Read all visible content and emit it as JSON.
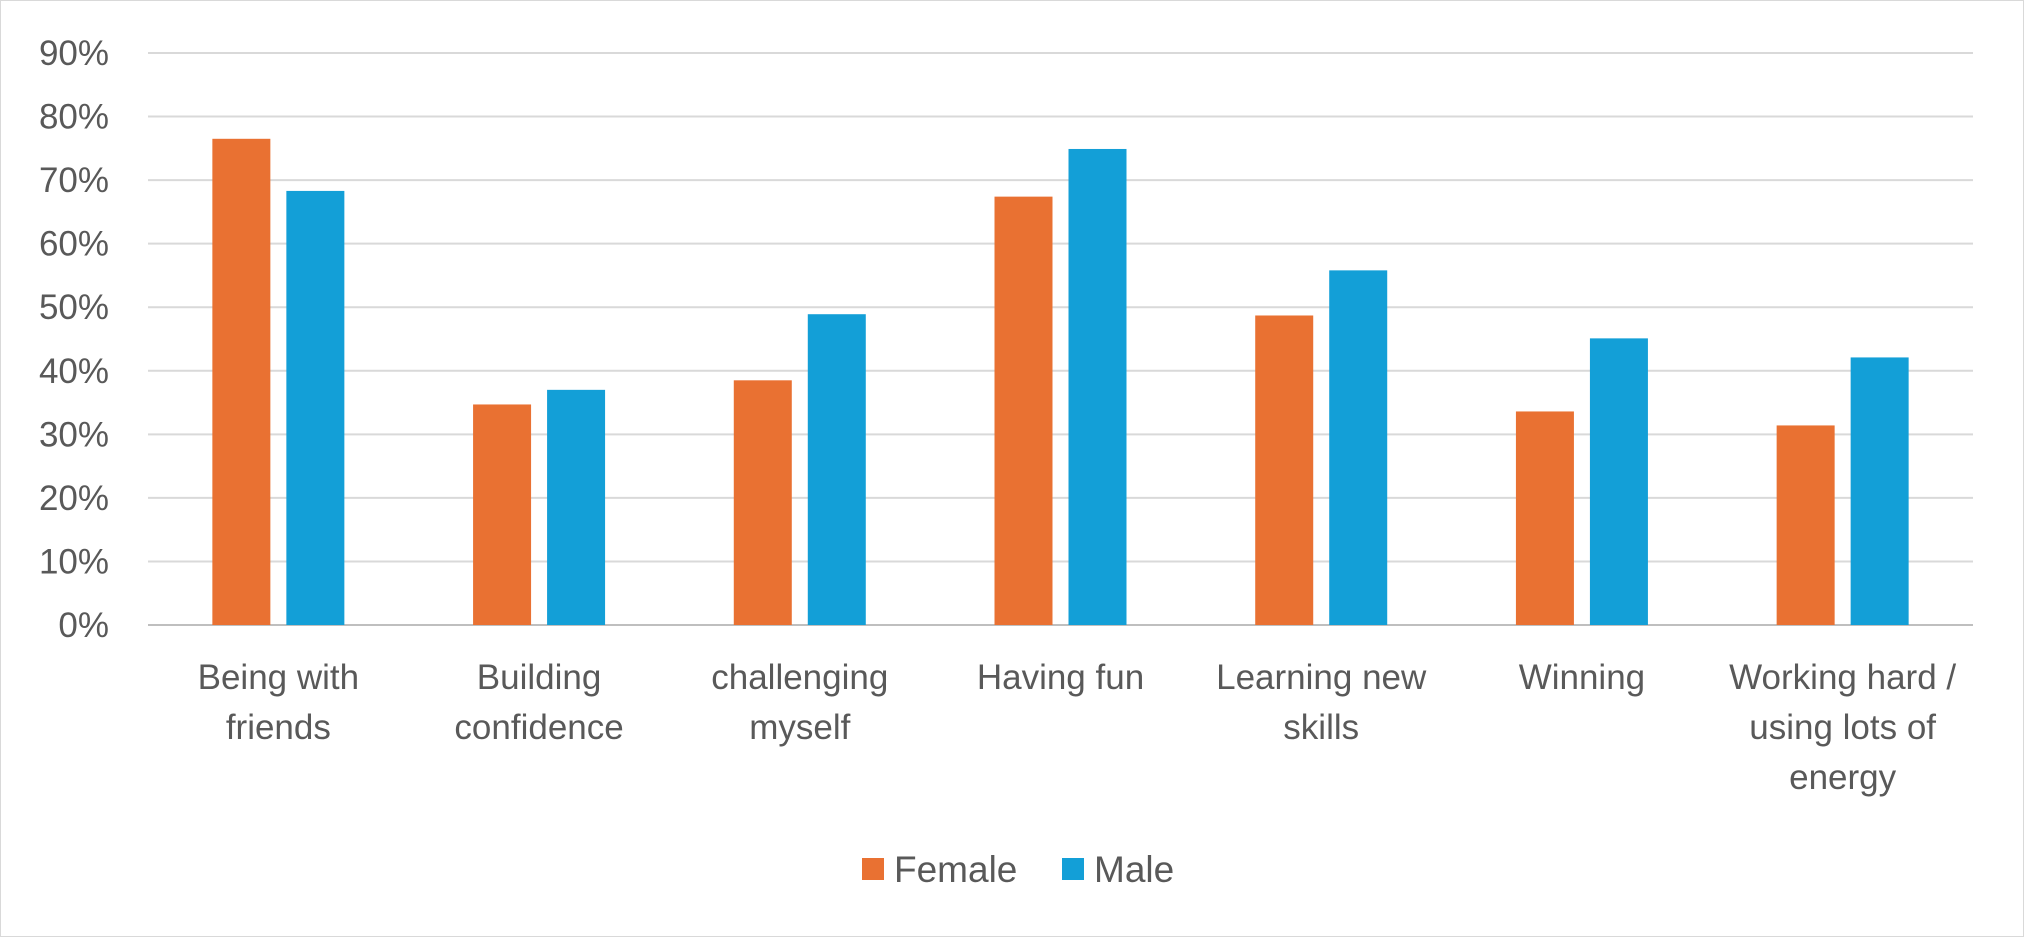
{
  "chart_data": {
    "type": "bar",
    "categories": [
      [
        "Being with",
        "friends"
      ],
      [
        "Building",
        "confidence"
      ],
      [
        "challenging",
        "myself"
      ],
      [
        "Having fun"
      ],
      [
        "Learning new",
        "skills"
      ],
      [
        "Winning"
      ],
      [
        "Working hard /",
        "using lots of",
        "energy"
      ]
    ],
    "series": [
      {
        "name": "Female",
        "color": "#E97132",
        "values": [
          0.765,
          0.347,
          0.385,
          0.674,
          0.487,
          0.336,
          0.314
        ]
      },
      {
        "name": "Male",
        "color": "#139FD7",
        "values": [
          0.683,
          0.37,
          0.489,
          0.749,
          0.558,
          0.451,
          0.421
        ]
      }
    ],
    "yticks": [
      "0%",
      "10%",
      "20%",
      "30%",
      "40%",
      "50%",
      "60%",
      "70%",
      "80%",
      "90%"
    ],
    "ylim": [
      0,
      0.9
    ],
    "grid": true,
    "legend_position": "bottom"
  }
}
